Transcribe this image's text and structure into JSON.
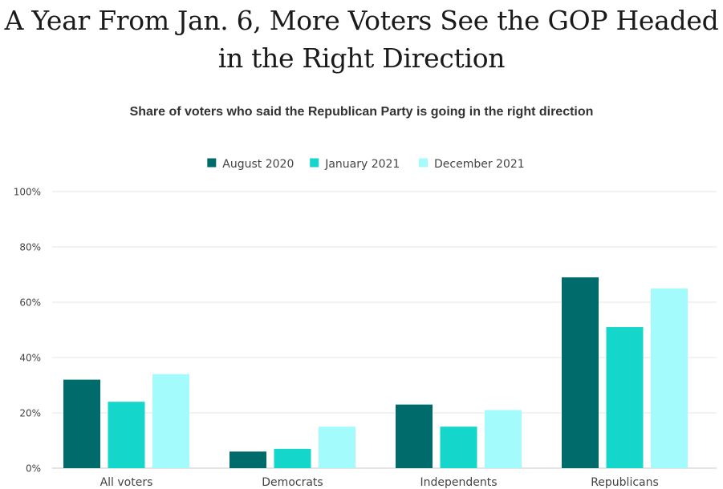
{
  "chart_data": {
    "type": "bar",
    "title": "A Year From Jan. 6, More Voters See the GOP Headed in the Right Direction",
    "subtitle": "Share of voters who said the Republican Party is going in the right direction",
    "categories": [
      "All voters",
      "Democrats",
      "Independents",
      "Republicans"
    ],
    "series": [
      {
        "name": "August 2020",
        "color": "#006b6b",
        "values": [
          32,
          6,
          23,
          69
        ]
      },
      {
        "name": "January 2021",
        "color": "#14d6cb",
        "values": [
          24,
          7,
          15,
          51
        ]
      },
      {
        "name": "December 2021",
        "color": "#a3fbfb",
        "values": [
          34,
          15,
          21,
          65
        ]
      }
    ],
    "xlabel": "",
    "ylabel": "",
    "ylim": [
      0,
      100
    ],
    "yticks": [
      "0%",
      "20%",
      "40%",
      "60%",
      "80%",
      "100%"
    ],
    "grid": true,
    "legend_position": "top-center"
  }
}
